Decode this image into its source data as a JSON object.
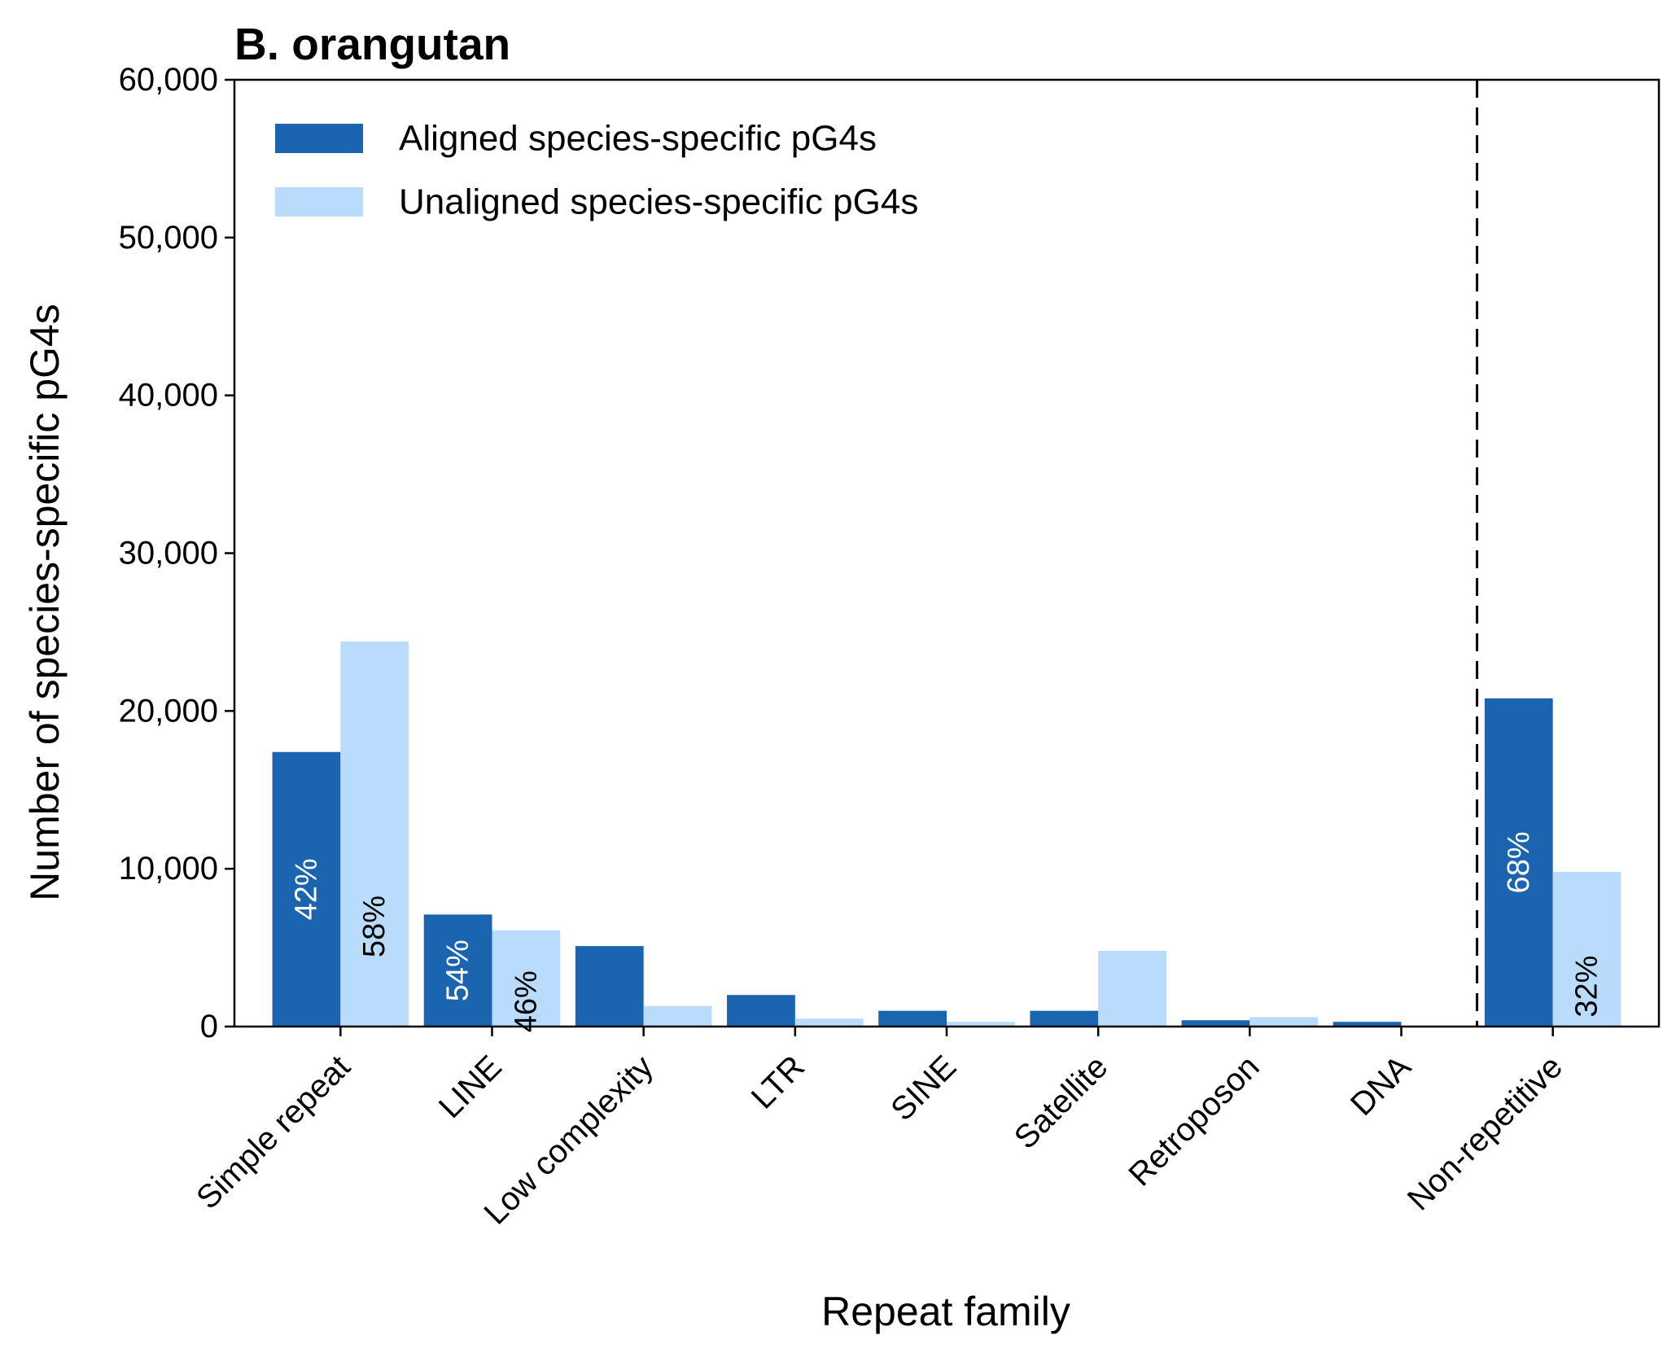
{
  "chart_data": {
    "type": "bar",
    "title": "B. orangutan",
    "xlabel": "Repeat family",
    "ylabel": "Number of species-specific pG4s",
    "ylim": [
      0,
      60000
    ],
    "yticks": [
      0,
      10000,
      20000,
      30000,
      40000,
      50000,
      60000
    ],
    "ytick_labels": [
      "0",
      "10,000",
      "20,000",
      "30,000",
      "40,000",
      "50,000",
      "60,000"
    ],
    "categories": [
      "Simple repeat",
      "LINE",
      "Low complexity",
      "LTR",
      "SINE",
      "Satellite",
      "Retroposon",
      "DNA",
      "Non-repetitive"
    ],
    "series": [
      {
        "name": "Aligned species-specific pG4s",
        "color": "#1a64b0",
        "values": [
          17400,
          7100,
          5100,
          2000,
          1000,
          1000,
          400,
          300,
          20800
        ],
        "labels": [
          "42%",
          "54%",
          "",
          "",
          "",
          "",
          "",
          "",
          "68%"
        ],
        "label_color": "#ffffff"
      },
      {
        "name": "Unaligned species-specific pG4s",
        "color": "#b9dcfc",
        "values": [
          24400,
          6100,
          1300,
          500,
          300,
          4800,
          600,
          0,
          9800
        ],
        "labels": [
          "58%",
          "46%",
          "",
          "",
          "",
          "",
          "",
          "",
          "32%"
        ],
        "label_color": "#000000"
      }
    ],
    "separator": {
      "after_category": "DNA",
      "style": "dashed"
    },
    "legend": {
      "position": "top-left"
    },
    "grid": false
  }
}
